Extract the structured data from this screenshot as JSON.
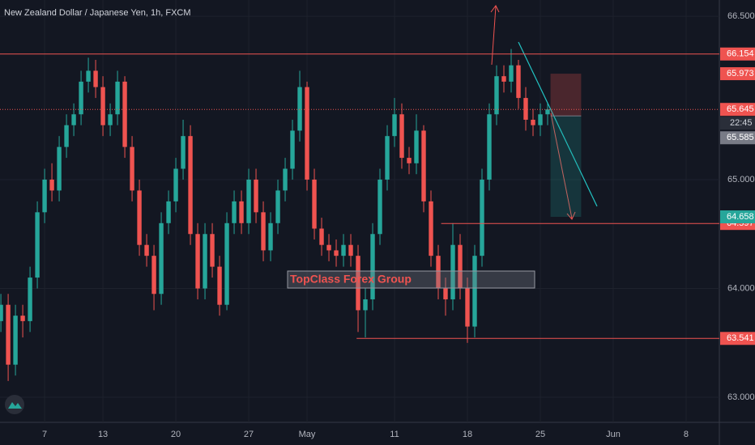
{
  "chart_data": {
    "type": "candlestick",
    "title": "New Zealand Dollar / Japanese Yen, 1h, FXCM",
    "annotation": "TopClass Forex Group",
    "countdown": "22:45",
    "up_color": "#26a69a",
    "down_color": "#ef5350",
    "x": [
      -3,
      -2.5,
      -2,
      -1.5,
      -1,
      -0.5,
      0,
      0.5,
      1,
      1.5,
      2,
      2.5,
      3,
      3.5,
      4,
      4.5,
      5,
      5.5,
      6,
      6.5,
      7,
      7.5,
      8,
      8.5,
      9,
      9.5,
      10,
      10.5,
      11,
      11.5,
      12,
      12.5,
      13,
      13.5,
      14,
      14.5,
      15,
      15.5,
      16,
      16.5,
      17,
      17.5,
      18,
      18.5,
      19,
      19.5,
      20,
      20.5,
      21,
      21.5,
      22,
      22.5,
      23,
      23.5,
      24,
      24.5,
      25,
      25.5,
      26,
      26.5,
      27,
      27.5,
      28,
      28.5,
      29,
      29.5,
      30,
      30.5,
      31,
      31.5,
      32,
      32.5,
      33,
      33.5,
      34,
      34.5
    ],
    "open": [
      63.7,
      63.85,
      63.3,
      63.75,
      63.7,
      64.1,
      64.7,
      65.0,
      64.9,
      65.3,
      65.5,
      65.6,
      65.9,
      66.0,
      65.85,
      65.5,
      65.6,
      65.9,
      65.3,
      64.9,
      64.4,
      64.3,
      63.95,
      64.6,
      64.8,
      65.1,
      65.4,
      64.5,
      64.0,
      64.5,
      64.2,
      63.85,
      64.6,
      64.8,
      64.6,
      65.0,
      64.7,
      64.35,
      64.6,
      64.9,
      65.1,
      65.45,
      65.85,
      65.0,
      64.55,
      64.4,
      64.35,
      64.3,
      64.4,
      64.3,
      63.8,
      63.9,
      64.5,
      65.0,
      65.4,
      65.6,
      65.2,
      65.15,
      65.45,
      64.8,
      64.3,
      64.0,
      63.9,
      64.4,
      64.0,
      63.65,
      64.3,
      65.0,
      65.6,
      65.95,
      65.9,
      66.05,
      65.75,
      65.55,
      65.5,
      65.6
    ],
    "high": [
      63.95,
      63.95,
      63.85,
      63.85,
      64.2,
      64.8,
      65.1,
      65.15,
      65.4,
      65.6,
      65.7,
      66.0,
      66.12,
      66.1,
      65.95,
      65.7,
      66.0,
      65.95,
      65.4,
      65.0,
      64.5,
      64.4,
      64.7,
      64.9,
      65.2,
      65.55,
      65.5,
      64.6,
      64.6,
      64.6,
      64.3,
      64.7,
      64.9,
      64.9,
      65.1,
      65.1,
      64.8,
      64.7,
      65.0,
      65.2,
      65.55,
      66.0,
      65.9,
      65.1,
      64.65,
      64.5,
      64.45,
      64.5,
      64.5,
      64.4,
      64.0,
      64.6,
      65.1,
      65.5,
      65.75,
      65.7,
      65.3,
      65.6,
      65.5,
      64.9,
      64.4,
      64.1,
      64.6,
      64.5,
      64.1,
      64.4,
      65.1,
      65.7,
      66.05,
      66.05,
      66.2,
      66.1,
      65.85,
      65.65,
      65.7,
      65.7
    ],
    "low": [
      63.6,
      63.15,
      63.2,
      63.55,
      63.6,
      64.0,
      64.6,
      64.8,
      64.8,
      65.2,
      65.4,
      65.5,
      65.8,
      65.75,
      65.4,
      65.4,
      65.5,
      65.2,
      64.8,
      64.3,
      64.2,
      63.8,
      63.85,
      64.5,
      64.7,
      65.0,
      64.4,
      63.9,
      63.9,
      64.1,
      63.75,
      63.8,
      64.5,
      64.5,
      64.5,
      64.6,
      64.25,
      64.25,
      64.5,
      64.8,
      65.0,
      65.35,
      64.9,
      64.45,
      64.3,
      64.25,
      64.2,
      64.2,
      64.2,
      63.6,
      63.55,
      63.8,
      64.4,
      64.9,
      65.3,
      65.1,
      65.05,
      65.05,
      64.7,
      64.2,
      63.9,
      63.75,
      63.8,
      63.9,
      63.5,
      63.55,
      64.2,
      64.9,
      65.5,
      65.8,
      65.8,
      65.65,
      65.45,
      65.4,
      65.4,
      65.5
    ],
    "close": [
      63.85,
      63.3,
      63.75,
      63.7,
      64.1,
      64.7,
      65.0,
      64.9,
      65.3,
      65.5,
      65.6,
      65.9,
      66.0,
      65.85,
      65.5,
      65.6,
      65.9,
      65.3,
      64.9,
      64.4,
      64.3,
      63.95,
      64.6,
      64.8,
      65.1,
      65.4,
      64.5,
      64.0,
      64.5,
      64.2,
      63.85,
      64.6,
      64.8,
      64.6,
      65.0,
      64.7,
      64.35,
      64.6,
      64.9,
      65.1,
      65.45,
      65.85,
      65.0,
      64.55,
      64.4,
      64.35,
      64.3,
      64.4,
      64.3,
      63.8,
      63.9,
      64.5,
      65.0,
      65.4,
      65.6,
      65.2,
      65.15,
      65.45,
      64.8,
      64.3,
      64.0,
      63.9,
      64.4,
      64.0,
      63.65,
      64.3,
      65.0,
      65.6,
      65.95,
      65.9,
      66.05,
      65.75,
      65.55,
      65.5,
      65.6,
      65.645
    ],
    "xlim": [
      -3.06,
      46.28
    ],
    "xticks": [
      {
        "value": 0,
        "label": "7"
      },
      {
        "value": 4,
        "label": "13"
      },
      {
        "value": 9,
        "label": "20"
      },
      {
        "value": 14,
        "label": "27"
      },
      {
        "value": 18,
        "label": "May"
      },
      {
        "value": 24,
        "label": "11"
      },
      {
        "value": 29,
        "label": "18"
      },
      {
        "value": 34,
        "label": "25"
      },
      {
        "value": 39,
        "label": "Jun"
      },
      {
        "value": 44,
        "label": "8"
      }
    ],
    "ylim": [
      62.77,
      66.65
    ],
    "yticks": [
      {
        "value": 63,
        "label": "63.000"
      },
      {
        "value": 64,
        "label": "64.000"
      },
      {
        "value": 65,
        "label": "65.000"
      },
      {
        "value": 66.5,
        "label": "66.500"
      }
    ],
    "levels": [
      {
        "value": 66.154,
        "color": "#ef5350",
        "style": "solid",
        "x_start": -3.06
      },
      {
        "value": 65.645,
        "color": "#ef5350",
        "style": "dotted",
        "x_start": -3.06
      },
      {
        "value": 64.597,
        "color": "#ef5350",
        "style": "solid",
        "x_start": 27.2
      },
      {
        "value": 63.541,
        "color": "#ef5350",
        "style": "solid",
        "x_start": 21.4
      }
    ],
    "position": {
      "stop": 65.973,
      "entry": 65.585,
      "target": 64.658,
      "x_start": 34.7,
      "x_end": 36.8
    }
  }
}
